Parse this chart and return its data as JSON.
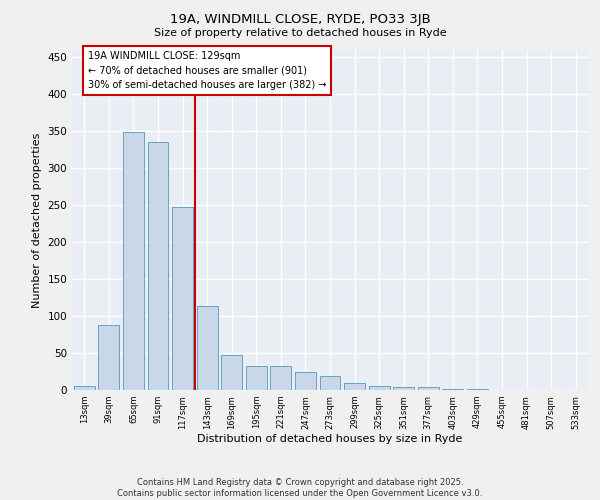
{
  "title1": "19A, WINDMILL CLOSE, RYDE, PO33 3JB",
  "title2": "Size of property relative to detached houses in Ryde",
  "xlabel": "Distribution of detached houses by size in Ryde",
  "ylabel": "Number of detached properties",
  "categories": [
    "13sqm",
    "39sqm",
    "65sqm",
    "91sqm",
    "117sqm",
    "143sqm",
    "169sqm",
    "195sqm",
    "221sqm",
    "247sqm",
    "273sqm",
    "299sqm",
    "325sqm",
    "351sqm",
    "377sqm",
    "403sqm",
    "429sqm",
    "455sqm",
    "481sqm",
    "507sqm",
    "533sqm"
  ],
  "values": [
    6,
    88,
    349,
    335,
    247,
    113,
    48,
    32,
    32,
    24,
    19,
    10,
    5,
    4,
    4,
    1,
    1,
    0,
    0,
    0,
    0
  ],
  "bar_color": "#c8d8e8",
  "bar_edge_color": "#5599bb",
  "vline_color": "#cc0000",
  "annotation_text": "19A WINDMILL CLOSE: 129sqm\n← 70% of detached houses are smaller (901)\n30% of semi-detached houses are larger (382) →",
  "annotation_box_color": "#cc0000",
  "background_color": "#e8eef4",
  "grid_color": "#ffffff",
  "footer": "Contains HM Land Registry data © Crown copyright and database right 2025.\nContains public sector information licensed under the Open Government Licence v3.0.",
  "ylim": [
    0,
    460
  ],
  "yticks": [
    0,
    50,
    100,
    150,
    200,
    250,
    300,
    350,
    400,
    450
  ],
  "fig_bg": "#f0f0f0"
}
